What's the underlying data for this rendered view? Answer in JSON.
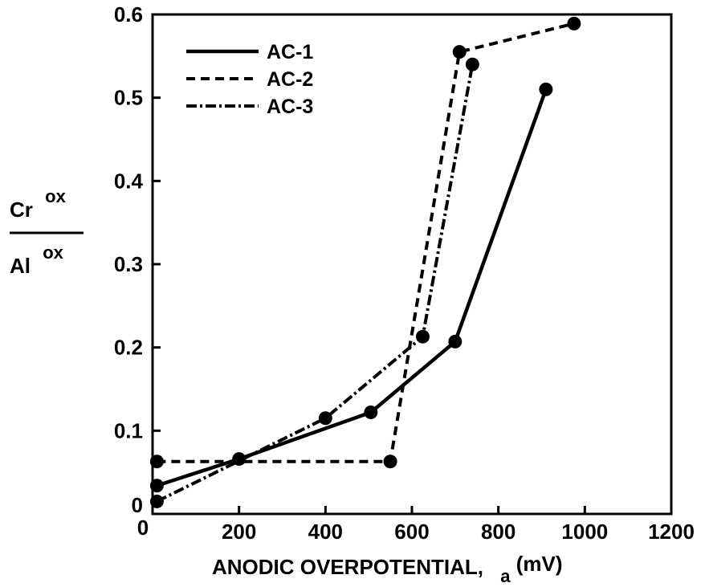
{
  "chart_data": {
    "type": "line",
    "title": "",
    "xlabel": "ANODIC OVERPOTENTIAL,",
    "xlabel_subscript": "a",
    "xlabel_unit": "(mV)",
    "ylabel": {
      "numerator_base": "Cr",
      "numerator_sup": "ox",
      "denominator_base": "Al",
      "denominator_sup": "ox"
    },
    "xlim": [
      0,
      1200
    ],
    "ylim": [
      0,
      0.6
    ],
    "x_ticks": [
      {
        "value": 0,
        "label": "0"
      },
      {
        "value": 200,
        "label": "200"
      },
      {
        "value": 400,
        "label": "400"
      },
      {
        "value": 600,
        "label": "600"
      },
      {
        "value": 800,
        "label": "800"
      },
      {
        "value": 1000,
        "label": "1000"
      },
      {
        "value": 1200,
        "label": "1200"
      }
    ],
    "y_ticks": [
      {
        "value": 0,
        "label": "0"
      },
      {
        "value": 0.1,
        "label": "0.1"
      },
      {
        "value": 0.2,
        "label": "0.2"
      },
      {
        "value": 0.3,
        "label": "0.3"
      },
      {
        "value": 0.4,
        "label": "0.4"
      },
      {
        "value": 0.5,
        "label": "0.5"
      },
      {
        "value": 0.6,
        "label": "0.6"
      }
    ],
    "grid": false,
    "legend_position": "top-left",
    "series": [
      {
        "name": "AC-1",
        "style": "solid",
        "x": [
          10,
          200,
          505,
          700,
          910
        ],
        "y": [
          0.034,
          0.066,
          0.122,
          0.207,
          0.51
        ]
      },
      {
        "name": "AC-2",
        "style": "dashed",
        "x": [
          10,
          550,
          710,
          975
        ],
        "y": [
          0.063,
          0.063,
          0.555,
          0.589
        ]
      },
      {
        "name": "AC-3",
        "style": "dash-dot",
        "x": [
          10,
          400,
          625,
          740
        ],
        "y": [
          0.015,
          0.115,
          0.213,
          0.54
        ]
      }
    ]
  }
}
